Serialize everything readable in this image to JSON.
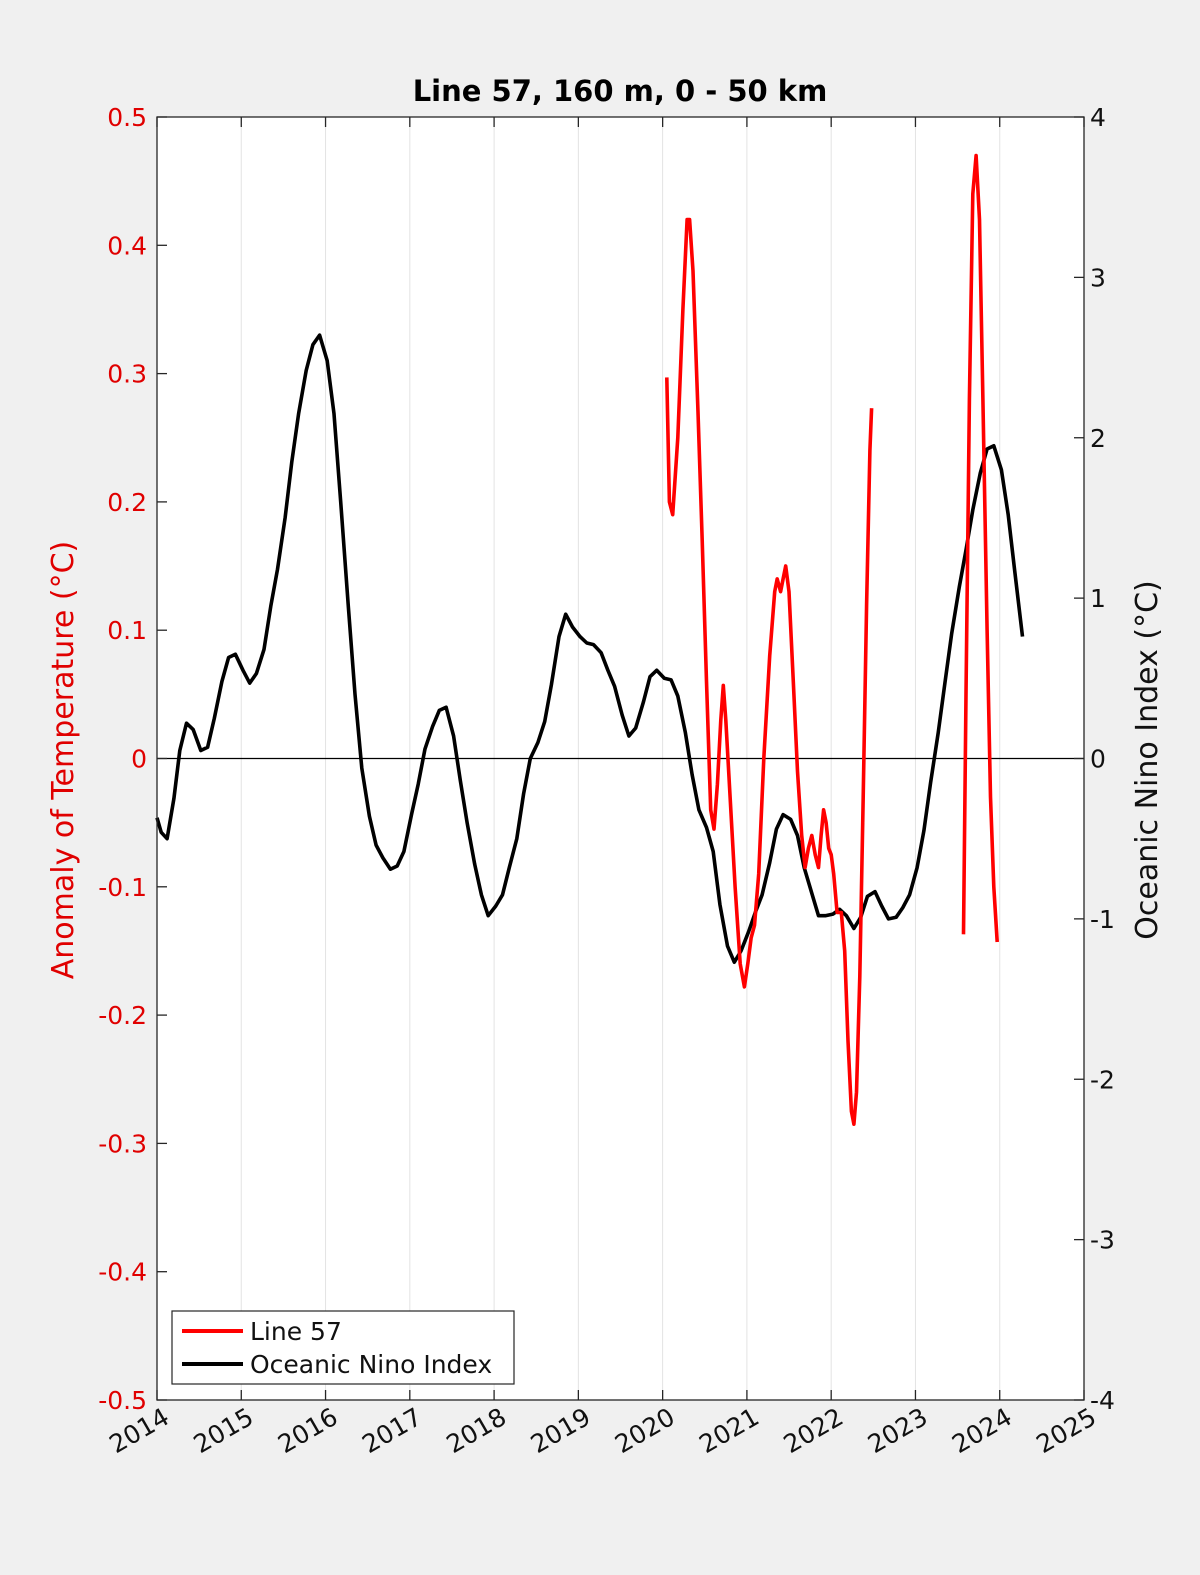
{
  "chart_data": {
    "type": "line",
    "title": "Line 57, 160 m, 0 - 50 km",
    "xlabel": "",
    "ylabel_left": "Anomaly of Temperature (°C)",
    "ylabel_right": "Oceanic Nino Index (°C)",
    "xlim": [
      2014,
      2025
    ],
    "ylim_left": [
      -0.5,
      0.5
    ],
    "ylim_right": [
      -4,
      4
    ],
    "x_ticks": [
      "2014",
      "2015",
      "2016",
      "2017",
      "2018",
      "2019",
      "2020",
      "2021",
      "2022",
      "2023",
      "2024",
      "2025"
    ],
    "y_ticks_left": [
      "0.5",
      "0.4",
      "0.3",
      "0.2",
      "0.1",
      "0",
      "-0.1",
      "-0.2",
      "-0.3",
      "-0.4",
      "-0.5"
    ],
    "y_ticks_right": [
      "4",
      "3",
      "2",
      "1",
      "0",
      "-1",
      "-2",
      "-3",
      "-4"
    ],
    "grid": "vertical",
    "zero_line": true,
    "legend_position": "bottom-left",
    "series": [
      {
        "name": "Line 57",
        "color": "#ff0000",
        "axis": "left",
        "segments": [
          [
            [
              2020.05,
              0.297
            ],
            [
              2020.08,
              0.2
            ],
            [
              2020.12,
              0.19
            ],
            [
              2020.18,
              0.25
            ],
            [
              2020.24,
              0.35
            ],
            [
              2020.29,
              0.42
            ],
            [
              2020.32,
              0.42
            ],
            [
              2020.36,
              0.38
            ],
            [
              2020.42,
              0.27
            ],
            [
              2020.47,
              0.17
            ],
            [
              2020.52,
              0.06
            ],
            [
              2020.57,
              -0.04
            ],
            [
              2020.61,
              -0.055
            ],
            [
              2020.65,
              -0.02
            ],
            [
              2020.69,
              0.03
            ],
            [
              2020.72,
              0.057
            ],
            [
              2020.75,
              0.03
            ],
            [
              2020.8,
              -0.03
            ],
            [
              2020.86,
              -0.1
            ],
            [
              2020.92,
              -0.16
            ],
            [
              2020.97,
              -0.178
            ],
            [
              2021.01,
              -0.16
            ],
            [
              2021.05,
              -0.14
            ],
            [
              2021.09,
              -0.13
            ],
            [
              2021.14,
              -0.09
            ],
            [
              2021.2,
              0.0
            ],
            [
              2021.27,
              0.08
            ],
            [
              2021.33,
              0.13
            ],
            [
              2021.36,
              0.14
            ],
            [
              2021.4,
              0.13
            ],
            [
              2021.43,
              0.14
            ],
            [
              2021.46,
              0.15
            ],
            [
              2021.5,
              0.13
            ],
            [
              2021.55,
              0.06
            ],
            [
              2021.6,
              -0.01
            ],
            [
              2021.65,
              -0.06
            ],
            [
              2021.69,
              -0.085
            ],
            [
              2021.73,
              -0.07
            ],
            [
              2021.77,
              -0.06
            ],
            [
              2021.81,
              -0.075
            ],
            [
              2021.85,
              -0.085
            ],
            [
              2021.88,
              -0.06
            ],
            [
              2021.91,
              -0.04
            ],
            [
              2021.94,
              -0.05
            ],
            [
              2021.97,
              -0.07
            ],
            [
              2022.0,
              -0.075
            ],
            [
              2022.03,
              -0.09
            ],
            [
              2022.07,
              -0.12
            ],
            [
              2022.12,
              -0.12
            ],
            [
              2022.16,
              -0.15
            ],
            [
              2022.2,
              -0.22
            ],
            [
              2022.24,
              -0.275
            ],
            [
              2022.27,
              -0.285
            ],
            [
              2022.3,
              -0.26
            ],
            [
              2022.34,
              -0.17
            ],
            [
              2022.38,
              -0.03
            ],
            [
              2022.42,
              0.12
            ],
            [
              2022.46,
              0.24
            ],
            [
              2022.48,
              0.273
            ]
          ],
          [
            [
              2023.57,
              -0.137
            ],
            [
              2023.6,
              0.05
            ],
            [
              2023.64,
              0.28
            ],
            [
              2023.68,
              0.44
            ],
            [
              2023.72,
              0.47
            ],
            [
              2023.76,
              0.42
            ],
            [
              2023.8,
              0.28
            ],
            [
              2023.85,
              0.1
            ],
            [
              2023.89,
              -0.03
            ],
            [
              2023.93,
              -0.1
            ],
            [
              2023.97,
              -0.143
            ]
          ]
        ]
      },
      {
        "name": "Oceanic Nino Index",
        "color": "#000000",
        "axis": "right",
        "points": [
          [
            2014.0,
            -0.37
          ],
          [
            2014.05,
            -0.46
          ],
          [
            2014.12,
            -0.5
          ],
          [
            2014.2,
            -0.25
          ],
          [
            2014.27,
            0.05
          ],
          [
            2014.35,
            0.22
          ],
          [
            2014.43,
            0.18
          ],
          [
            2014.52,
            0.05
          ],
          [
            2014.6,
            0.07
          ],
          [
            2014.68,
            0.25
          ],
          [
            2014.77,
            0.48
          ],
          [
            2014.85,
            0.63
          ],
          [
            2014.93,
            0.65
          ],
          [
            2015.02,
            0.55
          ],
          [
            2015.1,
            0.47
          ],
          [
            2015.18,
            0.53
          ],
          [
            2015.27,
            0.68
          ],
          [
            2015.35,
            0.95
          ],
          [
            2015.43,
            1.18
          ],
          [
            2015.52,
            1.5
          ],
          [
            2015.6,
            1.85
          ],
          [
            2015.68,
            2.15
          ],
          [
            2015.77,
            2.42
          ],
          [
            2015.85,
            2.58
          ],
          [
            2015.93,
            2.64
          ],
          [
            2016.02,
            2.48
          ],
          [
            2016.1,
            2.15
          ],
          [
            2016.18,
            1.6
          ],
          [
            2016.27,
            0.95
          ],
          [
            2016.35,
            0.4
          ],
          [
            2016.43,
            -0.06
          ],
          [
            2016.52,
            -0.36
          ],
          [
            2016.6,
            -0.54
          ],
          [
            2016.68,
            -0.62
          ],
          [
            2016.77,
            -0.69
          ],
          [
            2016.85,
            -0.67
          ],
          [
            2016.93,
            -0.58
          ],
          [
            2017.02,
            -0.35
          ],
          [
            2017.1,
            -0.16
          ],
          [
            2017.18,
            0.06
          ],
          [
            2017.27,
            0.2
          ],
          [
            2017.35,
            0.3
          ],
          [
            2017.43,
            0.32
          ],
          [
            2017.52,
            0.14
          ],
          [
            2017.6,
            -0.14
          ],
          [
            2017.68,
            -0.4
          ],
          [
            2017.77,
            -0.66
          ],
          [
            2017.85,
            -0.85
          ],
          [
            2017.93,
            -0.98
          ],
          [
            2018.02,
            -0.92
          ],
          [
            2018.1,
            -0.85
          ],
          [
            2018.18,
            -0.68
          ],
          [
            2018.27,
            -0.5
          ],
          [
            2018.35,
            -0.22
          ],
          [
            2018.43,
            0.0
          ],
          [
            2018.52,
            0.1
          ],
          [
            2018.6,
            0.23
          ],
          [
            2018.68,
            0.46
          ],
          [
            2018.77,
            0.76
          ],
          [
            2018.85,
            0.9
          ],
          [
            2018.93,
            0.82
          ],
          [
            2019.02,
            0.76
          ],
          [
            2019.1,
            0.72
          ],
          [
            2019.18,
            0.71
          ],
          [
            2019.27,
            0.66
          ],
          [
            2019.35,
            0.55
          ],
          [
            2019.43,
            0.45
          ],
          [
            2019.52,
            0.27
          ],
          [
            2019.6,
            0.14
          ],
          [
            2019.68,
            0.19
          ],
          [
            2019.77,
            0.35
          ],
          [
            2019.85,
            0.51
          ],
          [
            2019.93,
            0.55
          ],
          [
            2020.02,
            0.5
          ],
          [
            2020.1,
            0.49
          ],
          [
            2020.18,
            0.39
          ],
          [
            2020.27,
            0.16
          ],
          [
            2020.35,
            -0.1
          ],
          [
            2020.43,
            -0.32
          ],
          [
            2020.52,
            -0.43
          ],
          [
            2020.6,
            -0.58
          ],
          [
            2020.68,
            -0.91
          ],
          [
            2020.77,
            -1.17
          ],
          [
            2020.85,
            -1.27
          ],
          [
            2020.93,
            -1.2
          ],
          [
            2021.02,
            -1.08
          ],
          [
            2021.1,
            -0.96
          ],
          [
            2021.18,
            -0.85
          ],
          [
            2021.27,
            -0.65
          ],
          [
            2021.35,
            -0.44
          ],
          [
            2021.43,
            -0.35
          ],
          [
            2021.52,
            -0.38
          ],
          [
            2021.6,
            -0.48
          ],
          [
            2021.68,
            -0.68
          ],
          [
            2021.77,
            -0.84
          ],
          [
            2021.85,
            -0.98
          ],
          [
            2021.93,
            -0.98
          ],
          [
            2022.02,
            -0.97
          ],
          [
            2022.1,
            -0.94
          ],
          [
            2022.18,
            -0.98
          ],
          [
            2022.27,
            -1.06
          ],
          [
            2022.35,
            -0.99
          ],
          [
            2022.43,
            -0.86
          ],
          [
            2022.52,
            -0.83
          ],
          [
            2022.6,
            -0.92
          ],
          [
            2022.68,
            -1.0
          ],
          [
            2022.77,
            -0.99
          ],
          [
            2022.85,
            -0.93
          ],
          [
            2022.93,
            -0.85
          ],
          [
            2023.02,
            -0.68
          ],
          [
            2023.1,
            -0.45
          ],
          [
            2023.18,
            -0.15
          ],
          [
            2023.27,
            0.16
          ],
          [
            2023.35,
            0.47
          ],
          [
            2023.43,
            0.78
          ],
          [
            2023.52,
            1.07
          ],
          [
            2023.6,
            1.3
          ],
          [
            2023.68,
            1.55
          ],
          [
            2023.77,
            1.78
          ],
          [
            2023.85,
            1.93
          ],
          [
            2023.93,
            1.95
          ],
          [
            2024.02,
            1.8
          ],
          [
            2024.1,
            1.52
          ],
          [
            2024.18,
            1.16
          ],
          [
            2024.27,
            0.76
          ]
        ]
      }
    ]
  }
}
